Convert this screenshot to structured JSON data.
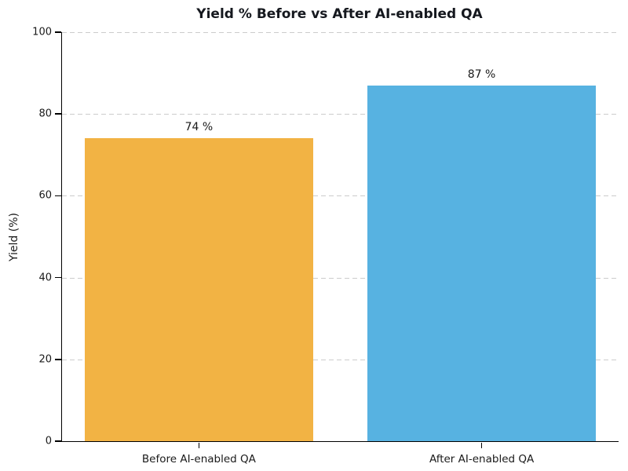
{
  "chart_data": {
    "type": "bar",
    "title": "Yield % Before vs After AI-enabled QA",
    "categories": [
      "Before AI-enabled QA",
      "After AI-enabled QA"
    ],
    "values": [
      74,
      87
    ],
    "value_labels": [
      "74 %",
      "87 %"
    ],
    "bar_colors": [
      "#F2B344",
      "#57B2E1"
    ],
    "xlabel": "",
    "ylabel": "Yield (%)",
    "ylim": [
      0,
      100
    ],
    "yticks": [
      0,
      20,
      40,
      60,
      80,
      100
    ],
    "grid": "horizontal dashed, behind bars",
    "legend": "none"
  },
  "colors": {
    "background": "#ffffff",
    "grid": "#cccccc",
    "axis": "#000000",
    "text": "#1a1a1a",
    "title_text": "#15181e"
  }
}
